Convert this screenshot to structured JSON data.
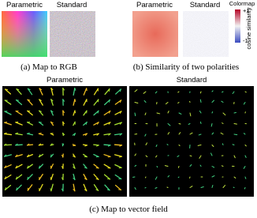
{
  "panel_a": {
    "labels": [
      "Parametric",
      "Standard"
    ],
    "caption": "(a) Map to RGB"
  },
  "panel_b": {
    "labels": [
      "Parametric",
      "Standard"
    ],
    "caption": "(b) Similarity of two polarities",
    "colormap": {
      "title": "Colormap",
      "max_label": "+1",
      "min_label": "-1",
      "axis_label": "cosine similarity"
    }
  },
  "panel_c": {
    "labels": [
      "Parametric",
      "Standard"
    ],
    "caption": "(c) Map to vector field"
  }
}
